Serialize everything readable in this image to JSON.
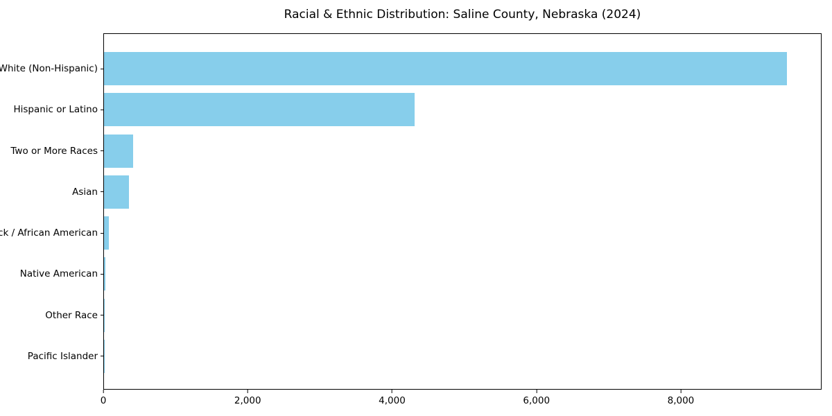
{
  "chart_data": {
    "type": "bar",
    "orientation": "horizontal",
    "title": "Racial & Ethnic Distribution: Saline County, Nebraska (2024)",
    "categories": [
      "White (Non-Hispanic)",
      "Hispanic or Latino",
      "Two or More Races",
      "Asian",
      "Black / African American",
      "Native American",
      "Other Race",
      "Pacific Islander"
    ],
    "values": [
      9475,
      4313,
      400,
      343,
      64,
      19,
      8,
      2
    ],
    "xlabel": "",
    "ylabel": "",
    "xlim": [
      0,
      9950
    ],
    "xticks": [
      0,
      2000,
      4000,
      6000,
      8000
    ],
    "xtick_labels": [
      "0",
      "2,000",
      "4,000",
      "6,000",
      "8,000"
    ],
    "bar_color": "#87CEEB",
    "background_color": "#ffffff",
    "axis_color": "#000000",
    "grid": false,
    "legend": null
  }
}
